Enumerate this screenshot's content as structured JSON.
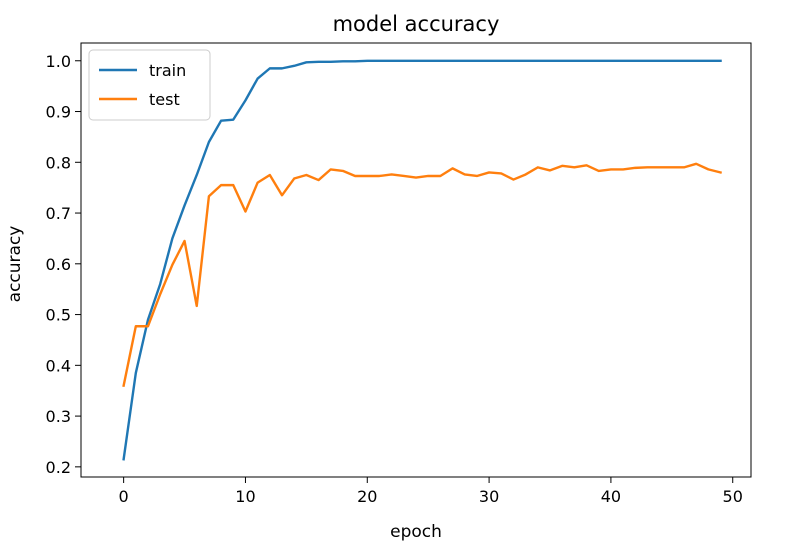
{
  "chart_data": {
    "type": "line",
    "title": "model accuracy",
    "xlabel": "epoch",
    "ylabel": "accuracy",
    "xlim": [
      -3.5,
      51.5
    ],
    "ylim": [
      0.18,
      1.035
    ],
    "xticks": [
      0,
      10,
      20,
      30,
      40,
      50
    ],
    "yticks": [
      0.2,
      0.3,
      0.4,
      0.5,
      0.6,
      0.7,
      0.8,
      0.9,
      1.0
    ],
    "grid": false,
    "legend_position": "top-left",
    "x": [
      0,
      1,
      2,
      3,
      4,
      5,
      6,
      7,
      8,
      9,
      10,
      11,
      12,
      13,
      14,
      15,
      16,
      17,
      18,
      19,
      20,
      21,
      22,
      23,
      24,
      25,
      26,
      27,
      28,
      29,
      30,
      31,
      32,
      33,
      34,
      35,
      36,
      37,
      38,
      39,
      40,
      41,
      42,
      43,
      44,
      45,
      46,
      47,
      48,
      49
    ],
    "series": [
      {
        "name": "train",
        "color": "#1f77b4",
        "values": [
          0.215,
          0.385,
          0.49,
          0.56,
          0.65,
          0.715,
          0.775,
          0.84,
          0.882,
          0.884,
          0.922,
          0.965,
          0.985,
          0.985,
          0.99,
          0.997,
          0.998,
          0.998,
          0.999,
          0.999,
          1.0,
          1.0,
          1.0,
          1.0,
          1.0,
          1.0,
          1.0,
          1.0,
          1.0,
          1.0,
          1.0,
          1.0,
          1.0,
          1.0,
          1.0,
          1.0,
          1.0,
          1.0,
          1.0,
          1.0,
          1.0,
          1.0,
          1.0,
          1.0,
          1.0,
          1.0,
          1.0,
          1.0,
          1.0,
          1.0
        ]
      },
      {
        "name": "test",
        "color": "#ff7f0e",
        "values": [
          0.36,
          0.477,
          0.477,
          0.54,
          0.598,
          0.645,
          0.517,
          0.733,
          0.755,
          0.755,
          0.703,
          0.76,
          0.775,
          0.735,
          0.768,
          0.775,
          0.765,
          0.786,
          0.783,
          0.773,
          0.773,
          0.773,
          0.776,
          0.773,
          0.77,
          0.773,
          0.773,
          0.788,
          0.776,
          0.773,
          0.78,
          0.778,
          0.766,
          0.776,
          0.79,
          0.784,
          0.793,
          0.79,
          0.794,
          0.783,
          0.786,
          0.786,
          0.789,
          0.79,
          0.79,
          0.79,
          0.79,
          0.797,
          0.786,
          0.78
        ]
      }
    ]
  }
}
